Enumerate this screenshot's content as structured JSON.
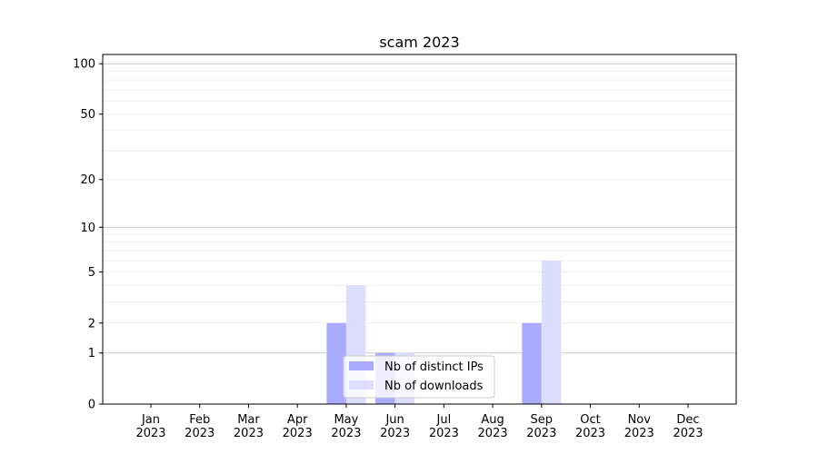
{
  "chart_data": {
    "type": "bar",
    "title": "scam 2023",
    "xlabel": "",
    "ylabel": "",
    "yscale": "log(1+y)",
    "ylim": [
      0,
      113
    ],
    "grid": true,
    "legend_placement": "lower-center",
    "categories": [
      "Jan\n2023",
      "Feb\n2023",
      "Mar\n2023",
      "Apr\n2023",
      "May\n2023",
      "Jun\n2023",
      "Jul\n2023",
      "Aug\n2023",
      "Sep\n2023",
      "Oct\n2023",
      "Nov\n2023",
      "Dec\n2023"
    ],
    "yticks": [
      0,
      1,
      2,
      5,
      10,
      20,
      50,
      100
    ],
    "series": [
      {
        "name": "Nb of distinct IPs",
        "color": "#aaaaff",
        "values": [
          0,
          0,
          0,
          0,
          2,
          1,
          0,
          0,
          2,
          0,
          0,
          0
        ]
      },
      {
        "name": "Nb of downloads",
        "color": "#ddddff",
        "values": [
          0,
          0,
          0,
          0,
          4,
          1,
          0,
          0,
          6,
          0,
          0,
          0
        ]
      }
    ]
  }
}
